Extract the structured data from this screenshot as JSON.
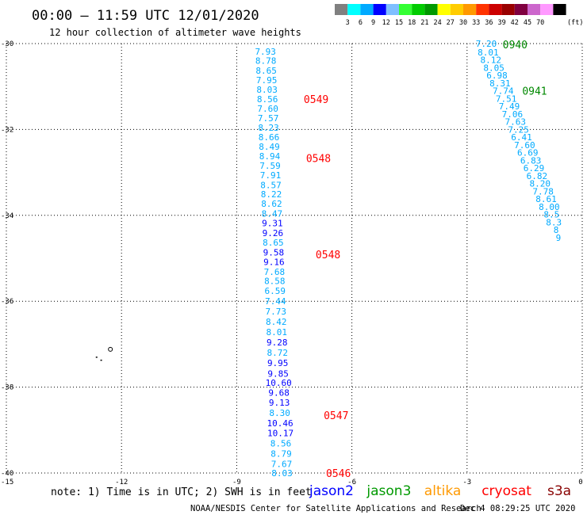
{
  "header": {
    "title": "00:00 – 11:59 UTC 12/01/2020",
    "subtitle": "12 hour collection of altimeter wave heights"
  },
  "colorbar": {
    "colors": [
      "#808080",
      "#00ffff",
      "#00aaff",
      "#0000ff",
      "#7fbfff",
      "#33ff33",
      "#00cc00",
      "#009900",
      "#ffff00",
      "#ffcc00",
      "#ff9900",
      "#ff3300",
      "#cc0000",
      "#990000",
      "#800040",
      "#cc66cc",
      "#ff99ff",
      "#000000"
    ],
    "labels": [
      "3",
      "6",
      "9",
      "12",
      "15",
      "18",
      "21",
      "24",
      "27",
      "30",
      "33",
      "36",
      "39",
      "42",
      "45",
      "70"
    ],
    "unit": "(ft)"
  },
  "chart_data": {
    "type": "scatter",
    "title": "00:00 – 11:59 UTC 12/01/2020",
    "subtitle": "12 hour collection of altimeter wave heights",
    "xlabel": "",
    "ylabel": "",
    "xlim": [
      -15,
      0
    ],
    "ylim": [
      -40,
      -30
    ],
    "x_ticks": [
      "-15",
      "-12",
      "-9",
      "-6",
      "-3",
      "0"
    ],
    "y_ticks": [
      "-30",
      "-32",
      "-34",
      "-36",
      "-38",
      "-40"
    ],
    "grid": true,
    "series": [
      {
        "name": "track west",
        "points": [
          {
            "lon": -8.25,
            "lat": -30.18,
            "swh": "7.93",
            "color": "#00aaff"
          },
          {
            "lon": -8.24,
            "lat": -30.4,
            "swh": "8.78",
            "color": "#00aaff"
          },
          {
            "lon": -8.23,
            "lat": -30.63,
            "swh": "8.65",
            "color": "#00aaff"
          },
          {
            "lon": -8.22,
            "lat": -30.85,
            "swh": "7.95",
            "color": "#00aaff"
          },
          {
            "lon": -8.21,
            "lat": -31.07,
            "swh": "8.03",
            "color": "#00aaff"
          },
          {
            "lon": -8.2,
            "lat": -31.29,
            "swh": "8.56",
            "color": "#00aaff"
          },
          {
            "lon": -8.19,
            "lat": -31.51,
            "swh": "7.60",
            "color": "#00aaff"
          },
          {
            "lon": -8.18,
            "lat": -31.73,
            "swh": "7.57",
            "color": "#00aaff"
          },
          {
            "lon": -8.17,
            "lat": -31.96,
            "swh": "8.23",
            "color": "#00aaff"
          },
          {
            "lon": -8.16,
            "lat": -32.18,
            "swh": "8.66",
            "color": "#00aaff"
          },
          {
            "lon": -8.15,
            "lat": -32.4,
            "swh": "8.49",
            "color": "#00aaff"
          },
          {
            "lon": -8.14,
            "lat": -32.62,
            "swh": "8.94",
            "color": "#00aaff"
          },
          {
            "lon": -8.13,
            "lat": -32.84,
            "swh": "7.59",
            "color": "#00aaff"
          },
          {
            "lon": -8.12,
            "lat": -33.06,
            "swh": "7.91",
            "color": "#00aaff"
          },
          {
            "lon": -8.11,
            "lat": -33.29,
            "swh": "8.57",
            "color": "#00aaff"
          },
          {
            "lon": -8.1,
            "lat": -33.51,
            "swh": "8.22",
            "color": "#00aaff"
          },
          {
            "lon": -8.09,
            "lat": -33.73,
            "swh": "8.62",
            "color": "#00aaff"
          },
          {
            "lon": -8.08,
            "lat": -33.96,
            "swh": "8.47",
            "color": "#00aaff"
          },
          {
            "lon": -8.07,
            "lat": -34.18,
            "swh": "9.31",
            "color": "#0000ff"
          },
          {
            "lon": -8.06,
            "lat": -34.41,
            "swh": "9.26",
            "color": "#0000ff"
          },
          {
            "lon": -8.05,
            "lat": -34.63,
            "swh": "8.65",
            "color": "#00aaff"
          },
          {
            "lon": -8.04,
            "lat": -34.86,
            "swh": "9.58",
            "color": "#0000ff"
          },
          {
            "lon": -8.03,
            "lat": -35.08,
            "swh": "9.16",
            "color": "#0000ff"
          },
          {
            "lon": -8.02,
            "lat": -35.31,
            "swh": "7.68",
            "color": "#00aaff"
          },
          {
            "lon": -8.01,
            "lat": -35.53,
            "swh": "8.58",
            "color": "#00aaff"
          },
          {
            "lon": -8.0,
            "lat": -35.76,
            "swh": "6.59",
            "color": "#00aaff"
          },
          {
            "lon": -7.99,
            "lat": -36.0,
            "swh": "7.44",
            "color": "#00aaff"
          },
          {
            "lon": -7.98,
            "lat": -36.24,
            "swh": "7.73",
            "color": "#00aaff"
          },
          {
            "lon": -7.97,
            "lat": -36.48,
            "swh": "8.42",
            "color": "#00aaff"
          },
          {
            "lon": -7.96,
            "lat": -36.72,
            "swh": "8.01",
            "color": "#00aaff"
          },
          {
            "lon": -7.95,
            "lat": -36.96,
            "swh": "9.28",
            "color": "#0000ff"
          },
          {
            "lon": -7.94,
            "lat": -37.2,
            "swh": "8.72",
            "color": "#00aaff"
          },
          {
            "lon": -7.93,
            "lat": -37.44,
            "swh": "9.95",
            "color": "#0000ff"
          },
          {
            "lon": -7.92,
            "lat": -37.68,
            "swh": "9.85",
            "color": "#0000ff"
          },
          {
            "lon": -7.91,
            "lat": -37.9,
            "swh": "10.60",
            "color": "#0000ff"
          },
          {
            "lon": -7.9,
            "lat": -38.13,
            "swh": "9.68",
            "color": "#0000ff"
          },
          {
            "lon": -7.89,
            "lat": -38.36,
            "swh": "9.13",
            "color": "#0000ff"
          },
          {
            "lon": -7.88,
            "lat": -38.6,
            "swh": "8.30",
            "color": "#00aaff"
          },
          {
            "lon": -7.87,
            "lat": -38.84,
            "swh": "10.46",
            "color": "#0000ff"
          },
          {
            "lon": -7.86,
            "lat": -39.07,
            "swh": "10.17",
            "color": "#0000ff"
          },
          {
            "lon": -7.85,
            "lat": -39.31,
            "swh": "8.56",
            "color": "#00aaff"
          },
          {
            "lon": -7.84,
            "lat": -39.55,
            "swh": "8.79",
            "color": "#00aaff"
          },
          {
            "lon": -7.83,
            "lat": -39.79,
            "swh": "7.67",
            "color": "#00aaff"
          },
          {
            "lon": -7.82,
            "lat": -40.0,
            "swh": "8.03",
            "color": "#00aaff"
          }
        ]
      },
      {
        "name": "track east",
        "points": [
          {
            "lon": -2.5,
            "lat": -30.0,
            "swh": "7.20",
            "color": "#00aaff"
          },
          {
            "lon": -2.45,
            "lat": -30.2,
            "swh": "8.01",
            "color": "#00aaff"
          },
          {
            "lon": -2.38,
            "lat": -30.38,
            "swh": "8.12",
            "color": "#00aaff"
          },
          {
            "lon": -2.3,
            "lat": -30.56,
            "swh": "8.05",
            "color": "#00aaff"
          },
          {
            "lon": -2.22,
            "lat": -30.74,
            "swh": "6.98",
            "color": "#00aaff"
          },
          {
            "lon": -2.14,
            "lat": -30.92,
            "swh": "8.31",
            "color": "#00aaff"
          },
          {
            "lon": -2.06,
            "lat": -31.1,
            "swh": "7.74",
            "color": "#00aaff"
          },
          {
            "lon": -1.98,
            "lat": -31.28,
            "swh": "7.51",
            "color": "#00aaff"
          },
          {
            "lon": -1.9,
            "lat": -31.46,
            "swh": "7.49",
            "color": "#00aaff"
          },
          {
            "lon": -1.82,
            "lat": -31.64,
            "swh": "7.06",
            "color": "#00aaff"
          },
          {
            "lon": -1.74,
            "lat": -31.82,
            "swh": "7.63",
            "color": "#00aaff"
          },
          {
            "lon": -1.66,
            "lat": -32.0,
            "swh": "7.25",
            "color": "#00aaff"
          },
          {
            "lon": -1.58,
            "lat": -32.18,
            "swh": "6.41",
            "color": "#00aaff"
          },
          {
            "lon": -1.5,
            "lat": -32.36,
            "swh": "7.60",
            "color": "#00aaff"
          },
          {
            "lon": -1.42,
            "lat": -32.54,
            "swh": "6.69",
            "color": "#00aaff"
          },
          {
            "lon": -1.34,
            "lat": -32.72,
            "swh": "6.83",
            "color": "#00aaff"
          },
          {
            "lon": -1.26,
            "lat": -32.9,
            "swh": "6.29",
            "color": "#00aaff"
          },
          {
            "lon": -1.18,
            "lat": -33.08,
            "swh": "6.82",
            "color": "#00aaff"
          },
          {
            "lon": -1.1,
            "lat": -33.26,
            "swh": "8.20",
            "color": "#00aaff"
          },
          {
            "lon": -1.02,
            "lat": -33.44,
            "swh": "7.78",
            "color": "#00aaff"
          },
          {
            "lon": -0.94,
            "lat": -33.62,
            "swh": "8.61",
            "color": "#00aaff"
          },
          {
            "lon": -0.86,
            "lat": -33.8,
            "swh": "8.00",
            "color": "#00aaff"
          },
          {
            "lon": -0.8,
            "lat": -33.98,
            "swh": "8.5",
            "color": "#00aaff"
          },
          {
            "lon": -0.74,
            "lat": -34.16,
            "swh": "8.3",
            "color": "#00aaff"
          },
          {
            "lon": -0.68,
            "lat": -34.34,
            "swh": "8",
            "color": "#00aaff"
          },
          {
            "lon": -0.62,
            "lat": -34.52,
            "swh": "9",
            "color": "#00aaff"
          }
        ]
      }
    ],
    "time_labels": [
      {
        "text": "0549",
        "lon": -6.93,
        "lat": -31.29,
        "color": "#ff0000"
      },
      {
        "text": "0548",
        "lon": -6.87,
        "lat": -32.67,
        "color": "#ff0000"
      },
      {
        "text": "0548",
        "lon": -6.62,
        "lat": -34.91,
        "color": "#ff0000"
      },
      {
        "text": "0547",
        "lon": -6.41,
        "lat": -38.65,
        "color": "#ff0000"
      },
      {
        "text": "0546",
        "lon": -6.35,
        "lat": -40.0,
        "color": "#ff0000"
      },
      {
        "text": "0940",
        "lon": -1.75,
        "lat": -30.02,
        "color": "#008800"
      },
      {
        "text": "0941",
        "lon": -1.24,
        "lat": -31.1,
        "color": "#008800"
      }
    ],
    "coastline_dots": [
      {
        "lon": -12.29,
        "lat": -37.12
      },
      {
        "lon": -12.67,
        "lat": -37.29
      },
      {
        "lon": -12.55,
        "lat": -37.36
      }
    ]
  },
  "notes": {
    "note_text": "note: 1) Time is in UTC; 2) SWH is in feet",
    "satellites": [
      {
        "name": "jason2",
        "color": "#0000ff"
      },
      {
        "name": "jason3",
        "color": "#009900"
      },
      {
        "name": "altika",
        "color": "#ff9900"
      },
      {
        "name": "cryosat",
        "color": "#ff0000"
      },
      {
        "name": "s3a",
        "color": "#880000"
      }
    ]
  },
  "footer": {
    "left": "NOAA/NESDIS Center for Satellite Applications and Research",
    "right": "Dec  4 08:29:25 UTC 2020"
  }
}
